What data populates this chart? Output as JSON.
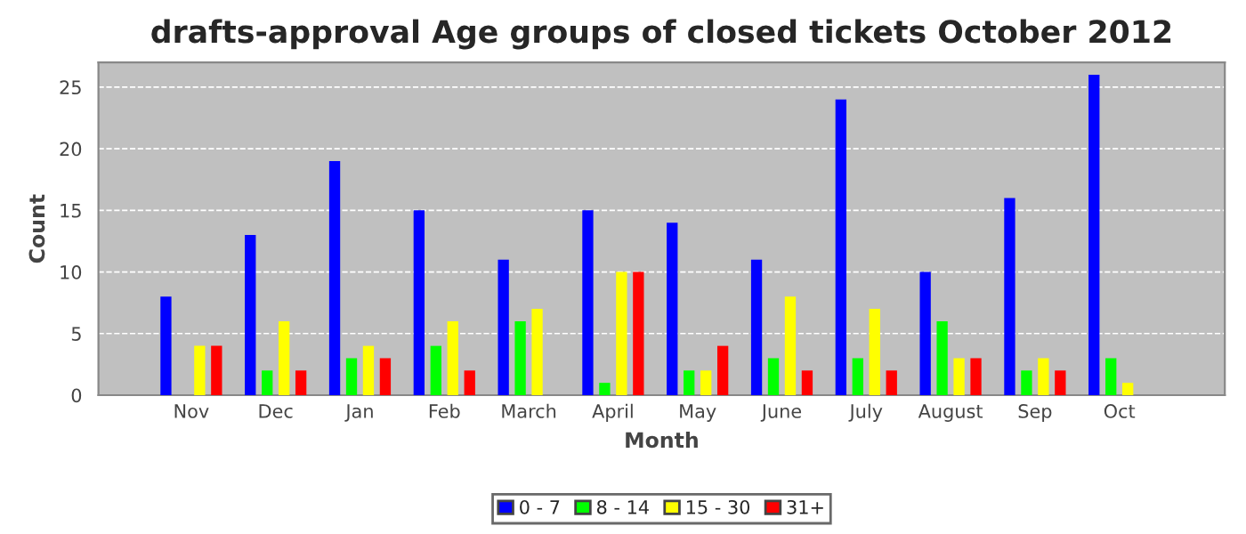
{
  "chart_data": {
    "type": "bar",
    "title": "drafts-approval Age groups of closed tickets October 2012",
    "xlabel": "Month",
    "ylabel": "Count",
    "categories": [
      "Nov",
      "Dec",
      "Jan",
      "Feb",
      "March",
      "April",
      "May",
      "June",
      "July",
      "August",
      "Sep",
      "Oct"
    ],
    "series": [
      {
        "name": "0 - 7",
        "color": "#0000ff",
        "values": [
          8,
          13,
          19,
          15,
          11,
          15,
          14,
          11,
          24,
          10,
          16,
          26
        ]
      },
      {
        "name": "8 - 14",
        "color": "#00ff00",
        "values": [
          0,
          2,
          3,
          4,
          6,
          1,
          2,
          3,
          3,
          6,
          2,
          3
        ]
      },
      {
        "name": "15 - 30",
        "color": "#ffff00",
        "values": [
          4,
          6,
          4,
          6,
          7,
          10,
          2,
          8,
          7,
          3,
          3,
          1
        ]
      },
      {
        "name": "31+",
        "color": "#ff0000",
        "values": [
          4,
          2,
          3,
          2,
          0,
          10,
          4,
          2,
          2,
          3,
          2,
          0
        ]
      }
    ],
    "ylim": [
      0,
      27
    ],
    "yticks": [
      0,
      5,
      10,
      15,
      20,
      25
    ],
    "grid": "y",
    "legend": "bottom"
  }
}
